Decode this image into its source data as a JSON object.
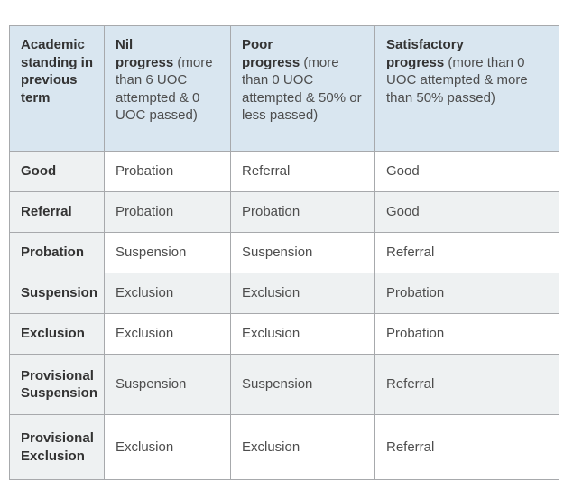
{
  "theme": {
    "header_bg": "#d9e6f0",
    "cell_gray": "#eef1f2",
    "border": "#a7a9ac",
    "text": "#4d4d4d",
    "heading_text": "#333333"
  },
  "table": {
    "columns": [
      {
        "title": "Academic standing in previous term"
      },
      {
        "title_line1": "Nil",
        "title_line2": "progress",
        "note": "(more than 6 UOC attempted & 0 UOC passed)"
      },
      {
        "title_line1": "Poor",
        "title_line2": "progress",
        "note": "(more than 0 UOC attempted & 50% or less passed)"
      },
      {
        "title_line1": "Satisfactory",
        "title_line2": "progress",
        "note": "(more than 0 UOC attempted & more than 50% passed)"
      }
    ],
    "rows": [
      {
        "standing": "Good",
        "nil": "Probation",
        "poor": "Referral",
        "satisfactory": "Good"
      },
      {
        "standing": "Referral",
        "nil": "Probation",
        "poor": "Probation",
        "satisfactory": "Good"
      },
      {
        "standing": "Probation",
        "nil": "Suspension",
        "poor": "Suspension",
        "satisfactory": "Referral"
      },
      {
        "standing": "Suspension",
        "nil": "Exclusion",
        "poor": "Exclusion",
        "satisfactory": "Probation"
      },
      {
        "standing": "Exclusion",
        "nil": "Exclusion",
        "poor": "Exclusion",
        "satisfactory": "Probation"
      },
      {
        "standing": "Provisional Suspension",
        "nil": "Suspension",
        "poor": "Suspension",
        "satisfactory": "Referral"
      },
      {
        "standing": "Provisional Exclusion",
        "nil": "Exclusion",
        "poor": "Exclusion",
        "satisfactory": "Referral"
      }
    ]
  }
}
